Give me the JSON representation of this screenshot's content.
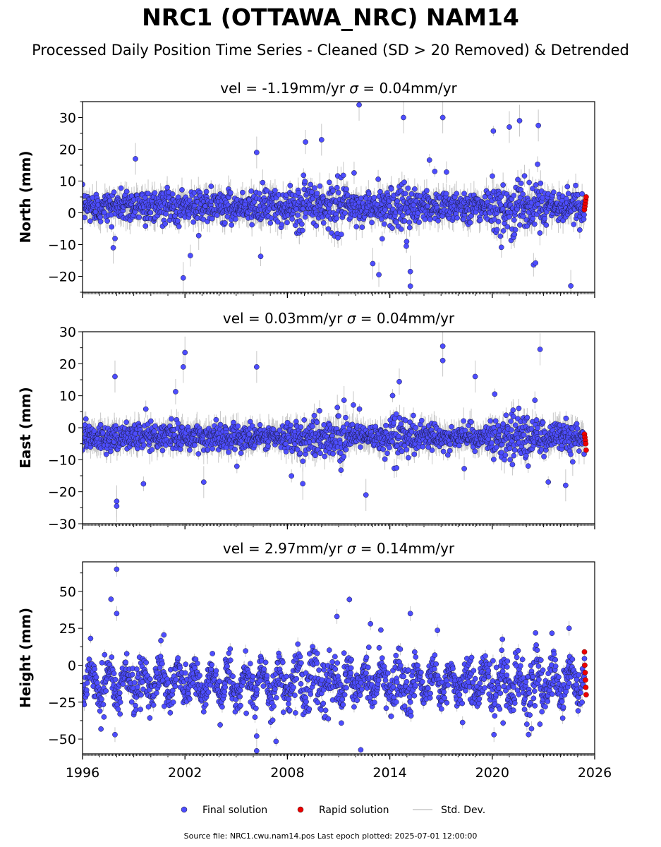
{
  "title": "NRC1 (OTTAWA_NRC) NAM14",
  "subtitle": "Processed Daily Position Time Series - Cleaned (SD > 20 Removed) & Detrended",
  "footer": "Source file: NRC1.cwu.nam14.pos  Last epoch plotted: 2025-07-01 12:00:00",
  "colors": {
    "final": "#4d4dff",
    "rapid": "#ee0000",
    "stddev": "#c8c8c8"
  },
  "legend": [
    {
      "label": "Final solution",
      "kind": "final"
    },
    {
      "label": "Rapid solution",
      "kind": "rapid"
    },
    {
      "label": "Std. Dev.",
      "kind": "stddev"
    }
  ],
  "chart_data": [
    {
      "type": "scatter",
      "panel": "north",
      "title_prefix": "vel = -1.19mm/yr",
      "sigma_text": "= 0.04mm/yr",
      "ylabel": "North (mm)",
      "xlim": [
        1996,
        2026
      ],
      "ylim": [
        -25,
        35
      ],
      "yticks": [
        -20,
        -10,
        0,
        10,
        20,
        30
      ],
      "xticks": [
        1996,
        2002,
        2008,
        2014,
        2020,
        2026
      ],
      "series": [
        {
          "name": "Final solution",
          "x_range": [
            1996.0,
            2025.4
          ],
          "baseline_mm": 2,
          "scatter_sd_mm": 2.5
        },
        {
          "name": "Rapid solution",
          "x_range": [
            2025.4,
            2025.5
          ],
          "values_mm": [
            1,
            2,
            3,
            4,
            5
          ]
        }
      ],
      "outliers": [
        [
          2012.2,
          34
        ],
        [
          2017.1,
          30
        ],
        [
          2014.8,
          30
        ],
        [
          2021.6,
          29
        ],
        [
          2022.7,
          27.5
        ],
        [
          2001.9,
          -20.5
        ],
        [
          2024.6,
          -23
        ],
        [
          2015.2,
          -18.5
        ],
        [
          1999.1,
          17
        ],
        [
          2006.2,
          19
        ],
        [
          2010.0,
          23
        ],
        [
          2021.0,
          27
        ],
        [
          2013.0,
          -16
        ],
        [
          1997.8,
          -11
        ]
      ]
    },
    {
      "type": "scatter",
      "panel": "east",
      "title_prefix": "vel = 0.03mm/yr",
      "sigma_text": "= 0.04mm/yr",
      "ylabel": "East (mm)",
      "xlim": [
        1996,
        2026
      ],
      "ylim": [
        -30,
        30
      ],
      "yticks": [
        -30,
        -20,
        -10,
        0,
        10,
        20,
        30
      ],
      "xticks": [
        1996,
        2002,
        2008,
        2014,
        2020,
        2026
      ],
      "series": [
        {
          "name": "Final solution",
          "x_range": [
            1996.0,
            2025.4
          ],
          "baseline_mm": -3,
          "scatter_sd_mm": 2
        },
        {
          "name": "Rapid solution",
          "x_range": [
            2025.4,
            2025.5
          ],
          "values_mm": [
            -2,
            -3,
            -4,
            -5,
            -7
          ]
        }
      ],
      "outliers": [
        [
          2002.0,
          23.5
        ],
        [
          2017.1,
          25.5
        ],
        [
          2017.1,
          21
        ],
        [
          2022.8,
          24.5
        ],
        [
          2001.9,
          19
        ],
        [
          1998.0,
          -23
        ],
        [
          1998.0,
          -24.5
        ],
        [
          2006.2,
          19
        ],
        [
          2012.6,
          -21
        ],
        [
          2024.3,
          -18
        ],
        [
          2003.1,
          -17
        ],
        [
          2008.9,
          -17.5
        ],
        [
          1997.9,
          16
        ],
        [
          2019.0,
          16
        ]
      ]
    },
    {
      "type": "scatter",
      "panel": "height",
      "title_prefix": "vel = 2.97mm/yr",
      "sigma_text": "= 0.14mm/yr",
      "ylabel": "Height (mm)",
      "xlim": [
        1996,
        2026
      ],
      "ylim": [
        -60,
        70
      ],
      "yticks": [
        -50,
        -25,
        0,
        25,
        50
      ],
      "xticks": [
        1996,
        2002,
        2008,
        2014,
        2020,
        2026
      ],
      "series": [
        {
          "name": "Final solution",
          "x_range": [
            1996.0,
            2025.4
          ],
          "baseline_mm": -12,
          "annual_amplitude_mm": 9,
          "scatter_sd_mm": 6
        },
        {
          "name": "Rapid solution",
          "x_range": [
            2025.4,
            2025.5
          ],
          "values_mm": [
            9,
            0,
            -5,
            -10,
            -15,
            -20
          ]
        }
      ],
      "outliers": [
        [
          1998.0,
          65
        ],
        [
          1998.0,
          35
        ],
        [
          2006.2,
          -58
        ],
        [
          2006.2,
          -48
        ],
        [
          2015.2,
          35
        ],
        [
          2010.9,
          33
        ],
        [
          2020.1,
          -47
        ],
        [
          2022.3,
          -43
        ],
        [
          2024.5,
          25
        ],
        [
          1997.9,
          -47
        ]
      ]
    }
  ]
}
